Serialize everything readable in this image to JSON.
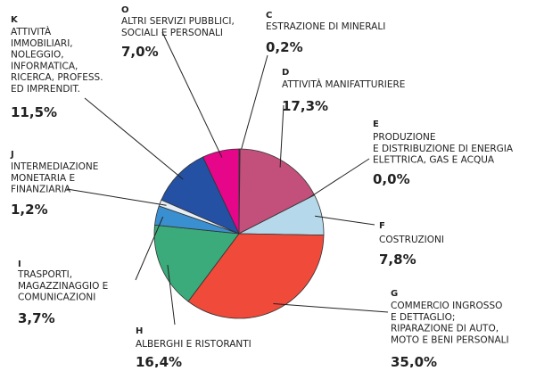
{
  "chart_data": {
    "type": "pie",
    "codes": [
      "C",
      "D",
      "E",
      "F",
      "G",
      "H",
      "I",
      "J",
      "K",
      "O"
    ],
    "categories": [
      "ESTRAZIONE DI MINERALI",
      "ATTIVITÀ MANIFATTURIERE",
      "PRODUZIONE\nE DISTRIBUZIONE DI ENERGIA\nELETTRICA, GAS E ACQUA",
      "COSTRUZIONI",
      "COMMERCIO INGROSSO\nE DETTAGLIO;\nRIPARAZIONE DI AUTO,\nMOTO E BENI PERSONALI",
      "ALBERGHI E RISTORANTI",
      "TRASPORTI,\nMAGAZZINAGGIO E\nCOMUNICAZIONI",
      "INTERMEDIAZIONE\nMONETARIA E\nFINANZIARIA",
      "ATTIVITÀ\nIMMOBILIARI,\nNOLEGGIO,\nINFORMATICA,\nRICERCA, PROFESS.\nED IMPRENDIT.",
      "ALTRI SERVIZI PUBBLICI,\nSOCIALI E PERSONALI"
    ],
    "values": [
      0.2,
      17.3,
      0.0,
      7.8,
      35.0,
      16.4,
      3.7,
      1.2,
      11.5,
      7.0
    ],
    "value_labels": [
      "0,2%",
      "17,3%",
      "0,0%",
      "7,8%",
      "35,0%",
      "16,4%",
      "3,7%",
      "1,2%",
      "11,5%",
      "7,0%"
    ],
    "colors": [
      "#8a1c3c",
      "#c2507a",
      "#b5d9ea",
      "#b5d9ea",
      "#ef4a3a",
      "#3bab7b",
      "#3a8fd0",
      "#e6edf5",
      "#2451a3",
      "#e5068a"
    ]
  }
}
